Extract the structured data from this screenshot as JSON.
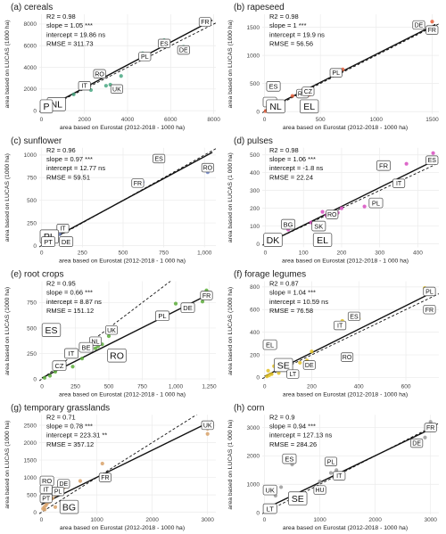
{
  "figure": {
    "colors": {
      "cereals": "#4aa882",
      "rapeseed": "#e8603c",
      "sunflower": "#6b82c8",
      "pulses": "#d74ec0",
      "root_crops": "#5aac3a",
      "forage_legumes": "#e3c225",
      "temporary_grasslands": "#d8a26a",
      "corn": "#9a9a9a"
    }
  },
  "chart_data": [
    {
      "type": "scatter",
      "key": "cereals",
      "title": "(a) cereals",
      "stats": [
        "R2 = 0.98",
        "slope = 1.05 ***",
        "intercept = 19.86 ns",
        "RMSE = 311.73"
      ],
      "xlabel": "area based on Eurostat (2012-2018 - 1000 ha)",
      "ylabel": "area based on LUCAS (1000 ha)",
      "xlim": [
        -100,
        8100
      ],
      "ylim": [
        -300,
        8900
      ],
      "xticks": [
        0,
        2000,
        4000,
        6000,
        8000
      ],
      "xtick_labels": [
        "0",
        "2000",
        "4000",
        "6000",
        "8000"
      ],
      "yticks": [
        0,
        2000,
        4000,
        6000,
        8000
      ],
      "ytick_labels": [
        "0",
        "2000",
        "4000",
        "6000",
        "8000"
      ],
      "slope": 1.05,
      "intercept": 19.86,
      "points": [
        [
          7600,
          8400
        ],
        [
          5700,
          6500
        ],
        [
          6600,
          5900
        ],
        [
          4700,
          5300
        ],
        [
          3700,
          3200
        ],
        [
          2800,
          3300
        ],
        [
          3200,
          2400
        ],
        [
          1900,
          2200
        ],
        [
          3000,
          2300
        ],
        [
          1500,
          1500
        ],
        [
          2300,
          1900
        ],
        [
          1000,
          900
        ],
        [
          600,
          600
        ],
        [
          200,
          150
        ],
        [
          80,
          100
        ],
        [
          300,
          300
        ]
      ],
      "labels": [
        {
          "t": "FR",
          "x": 7600,
          "y": 8200,
          "s": 0
        },
        {
          "t": "ES",
          "x": 5700,
          "y": 6200,
          "s": 0
        },
        {
          "t": "DE",
          "x": 6600,
          "y": 5600,
          "s": 0
        },
        {
          "t": "PL",
          "x": 4800,
          "y": 5000,
          "s": 0
        },
        {
          "t": "RO",
          "x": 2700,
          "y": 3400,
          "s": 0
        },
        {
          "t": "UK",
          "x": 3500,
          "y": 2000,
          "s": 0
        },
        {
          "t": "IT",
          "x": 2000,
          "y": 2300,
          "s": 0
        },
        {
          "t": "NL",
          "x": 700,
          "y": 600,
          "s": 2
        },
        {
          "t": "P",
          "x": 200,
          "y": 200,
          "s": 2
        }
      ]
    },
    {
      "type": "scatter",
      "key": "rapeseed",
      "title": "(b) rapeseed",
      "stats": [
        "R2 = 0.98",
        "slope = 1 ***",
        "intercept = 19.9 ns",
        "RMSE = 56.56"
      ],
      "xlabel": "area based on Eurostat (2012-2018 - 1000 ha)",
      "ylabel": "area based on LUCAS (1000 ha)",
      "xlim": [
        -20,
        1560
      ],
      "ylim": [
        -40,
        1730
      ],
      "xticks": [
        0,
        500,
        1000,
        1500
      ],
      "xtick_labels": [
        "0",
        "500",
        "1000",
        "1500"
      ],
      "yticks": [
        0,
        500,
        1000,
        1500
      ],
      "ytick_labels": [
        "0",
        "500",
        "1000",
        "1500"
      ],
      "slope": 1.0,
      "intercept": 19.9,
      "points": [
        [
          1500,
          1600
        ],
        [
          1400,
          1500
        ],
        [
          700,
          750
        ],
        [
          350,
          400
        ],
        [
          400,
          300
        ],
        [
          250,
          280
        ],
        [
          120,
          150
        ],
        [
          80,
          60
        ],
        [
          50,
          40
        ],
        [
          30,
          20
        ],
        [
          10,
          10
        ]
      ],
      "labels": [
        {
          "t": "FR",
          "x": 1500,
          "y": 1450,
          "s": 0
        },
        {
          "t": "DE",
          "x": 1380,
          "y": 1540,
          "s": 0
        },
        {
          "t": "PL",
          "x": 640,
          "y": 690,
          "s": 0
        },
        {
          "t": "RO",
          "x": 340,
          "y": 320,
          "s": 0
        },
        {
          "t": "CZ",
          "x": 390,
          "y": 360,
          "s": 0
        },
        {
          "t": "ES",
          "x": 80,
          "y": 450,
          "s": 1
        },
        {
          "t": "IT",
          "x": 20,
          "y": 170,
          "s": 1
        },
        {
          "t": "NL",
          "x": 100,
          "y": 50,
          "s": 2
        },
        {
          "t": "EL",
          "x": 400,
          "y": 30,
          "s": 2
        }
      ]
    },
    {
      "type": "scatter",
      "key": "sunflower",
      "title": "(c) sunflower",
      "stats": [
        "R2 = 0.96",
        "slope = 0.97 ***",
        "intercept = 12.77 ns",
        "RMSE = 59.51"
      ],
      "xlabel": "area based on Eurostat (2012-2018 - 1 000 ha)",
      "ylabel": "area based on LUCAS (1000 ha)",
      "xlim": [
        -15,
        1070
      ],
      "ylim": [
        -20,
        1080
      ],
      "xticks": [
        0,
        250,
        500,
        750,
        1000
      ],
      "xtick_labels": [
        "0",
        "250",
        "500",
        "750",
        "1,000"
      ],
      "yticks": [
        0,
        250,
        500,
        750,
        1000
      ],
      "ytick_labels": [
        "0",
        "250",
        "500",
        "750",
        "1000"
      ],
      "slope": 0.97,
      "intercept": 12.77,
      "points": [
        [
          1020,
          810
        ],
        [
          720,
          930
        ],
        [
          620,
          700
        ],
        [
          110,
          130
        ],
        [
          90,
          60
        ],
        [
          70,
          40
        ],
        [
          50,
          30
        ],
        [
          20,
          20
        ],
        [
          10,
          5
        ]
      ],
      "labels": [
        {
          "t": "RO",
          "x": 1020,
          "y": 860,
          "s": 0
        },
        {
          "t": "ES",
          "x": 720,
          "y": 960,
          "s": 0
        },
        {
          "t": "FR",
          "x": 590,
          "y": 690,
          "s": 0
        },
        {
          "t": "IT",
          "x": 130,
          "y": 190,
          "s": 0
        },
        {
          "t": "PL",
          "x": 40,
          "y": 100,
          "s": 2
        },
        {
          "t": "DE",
          "x": 150,
          "y": 40,
          "s": 1
        },
        {
          "t": "PT",
          "x": 40,
          "y": 0,
          "s": 1
        }
      ]
    },
    {
      "type": "scatter",
      "key": "pulses",
      "title": "(d) pulses",
      "stats": [
        "R2 = 0.98",
        "slope = 1.06 ***",
        "intercept = -1.8 ns",
        "RMSE = 22.24"
      ],
      "xlabel": "area based on Eurostat (2012-2018 - 1 000 ha)",
      "ylabel": "area based on LUCAS (1 000 ha)",
      "xlim": [
        -8,
        455
      ],
      "ylim": [
        -20,
        540
      ],
      "xticks": [
        0,
        100,
        200,
        300,
        400
      ],
      "xtick_labels": [
        "0",
        "100",
        "200",
        "300",
        "400"
      ],
      "yticks": [
        0,
        100,
        200,
        300,
        400,
        500
      ],
      "ytick_labels": [
        "0",
        "100",
        "200",
        "300",
        "400",
        "500"
      ],
      "slope": 1.06,
      "intercept": -1.8,
      "points": [
        [
          440,
          510
        ],
        [
          440,
          460
        ],
        [
          370,
          450
        ],
        [
          260,
          210
        ],
        [
          200,
          200
        ],
        [
          190,
          175
        ],
        [
          160,
          160
        ],
        [
          150,
          180
        ],
        [
          120,
          120
        ],
        [
          60,
          80
        ],
        [
          30,
          30
        ],
        [
          20,
          20
        ],
        [
          10,
          10
        ]
      ],
      "labels": [
        {
          "t": "ES",
          "x": 440,
          "y": 470,
          "s": 0
        },
        {
          "t": "FR",
          "x": 310,
          "y": 440,
          "s": 1
        },
        {
          "t": "IT",
          "x": 350,
          "y": 340,
          "s": 0
        },
        {
          "t": "PL",
          "x": 290,
          "y": 230,
          "s": 1
        },
        {
          "t": "RO",
          "x": 175,
          "y": 165,
          "s": 0
        },
        {
          "t": "BG",
          "x": 60,
          "y": 110,
          "s": 1
        },
        {
          "t": "SK",
          "x": 140,
          "y": 100,
          "s": 1
        },
        {
          "t": "DK",
          "x": 20,
          "y": 20,
          "s": 2
        },
        {
          "t": "EL",
          "x": 150,
          "y": 20,
          "s": 2
        }
      ]
    },
    {
      "type": "scatter",
      "key": "root_crops",
      "title": "(e) root crops",
      "stats": [
        "R2 = 0.95",
        "slope = 0.66 ***",
        "intercept = 8.87 ns",
        "RMSE = 151.12"
      ],
      "xlabel": "area based on Eurostat (2012-2018 - 1 000 ha)",
      "ylabel": "area based on LUCAS (1000 ha)",
      "xlim": [
        -20,
        1300
      ],
      "ylim": [
        -20,
        960
      ],
      "xticks": [
        0,
        250,
        500,
        750,
        1000,
        1250
      ],
      "xtick_labels": [
        "0",
        "250",
        "500",
        "750",
        "1,000",
        "1,250"
      ],
      "yticks": [
        0,
        250,
        500,
        750
      ],
      "ytick_labels": [
        "0",
        "250",
        "500",
        "750"
      ],
      "slope": 0.66,
      "intercept": 8.87,
      "points": [
        [
          1230,
          870
        ],
        [
          1200,
          760
        ],
        [
          1000,
          740
        ],
        [
          500,
          420
        ],
        [
          450,
          340
        ],
        [
          420,
          320
        ],
        [
          300,
          200
        ],
        [
          230,
          120
        ],
        [
          100,
          70
        ],
        [
          60,
          30
        ],
        [
          20,
          10
        ],
        [
          400,
          300
        ]
      ],
      "labels": [
        {
          "t": "FR",
          "x": 1230,
          "y": 820,
          "s": 0
        },
        {
          "t": "DE",
          "x": 1090,
          "y": 700,
          "s": 1
        },
        {
          "t": "PL",
          "x": 900,
          "y": 620,
          "s": 1
        },
        {
          "t": "UK",
          "x": 520,
          "y": 480,
          "s": 0
        },
        {
          "t": "ES",
          "x": 70,
          "y": 480,
          "s": 2
        },
        {
          "t": "NL",
          "x": 400,
          "y": 370,
          "s": 0
        },
        {
          "t": "BE",
          "x": 330,
          "y": 310,
          "s": 1
        },
        {
          "t": "IT",
          "x": 220,
          "y": 250,
          "s": 1
        },
        {
          "t": "RO",
          "x": 560,
          "y": 230,
          "s": 2
        },
        {
          "t": "CZ",
          "x": 130,
          "y": 130,
          "s": 1
        }
      ]
    },
    {
      "type": "scatter",
      "key": "forage_legumes",
      "title": "(f) forage legumes",
      "stats": [
        "R2 = 0.87",
        "slope = 1.04 ***",
        "intercept = 10.59 ns",
        "RMSE = 76.58"
      ],
      "xlabel": "area based on Eurostat (2012-2018 - 1000 ha)",
      "ylabel": "area based on LUCAS (1000 ha)",
      "xlim": [
        -10,
        740
      ],
      "ylim": [
        -30,
        850
      ],
      "xticks": [
        0,
        200,
        400,
        600
      ],
      "xtick_labels": [
        "0",
        "200",
        "400",
        "600"
      ],
      "yticks": [
        0,
        200,
        400,
        600,
        800
      ],
      "ytick_labels": [
        "0",
        "200",
        "400",
        "600",
        "800"
      ],
      "slope": 1.04,
      "intercept": 10.59,
      "points": [
        [
          680,
          790
        ],
        [
          690,
          590
        ],
        [
          400,
          520
        ],
        [
          330,
          500
        ],
        [
          310,
          460
        ],
        [
          200,
          230
        ],
        [
          180,
          150
        ],
        [
          150,
          130
        ],
        [
          100,
          100
        ],
        [
          80,
          80
        ],
        [
          60,
          40
        ],
        [
          30,
          30
        ],
        [
          20,
          20
        ],
        [
          10,
          10
        ],
        [
          15,
          60
        ],
        [
          40,
          100
        ]
      ],
      "labels": [
        {
          "t": "PL",
          "x": 700,
          "y": 760,
          "s": 0
        },
        {
          "t": "FR",
          "x": 700,
          "y": 600,
          "s": 0
        },
        {
          "t": "IT",
          "x": 320,
          "y": 460,
          "s": 0
        },
        {
          "t": "ES",
          "x": 380,
          "y": 540,
          "s": 0
        },
        {
          "t": "RO",
          "x": 350,
          "y": 180,
          "s": 0
        },
        {
          "t": "EL",
          "x": 20,
          "y": 290,
          "s": 1
        },
        {
          "t": "SE",
          "x": 80,
          "y": 110,
          "s": 2
        },
        {
          "t": "DE",
          "x": 190,
          "y": 110,
          "s": 0
        },
        {
          "t": "LT",
          "x": 120,
          "y": 30,
          "s": 0
        }
      ]
    },
    {
      "type": "scatter",
      "key": "temporary_grasslands",
      "title": "(g) temporary grasslands",
      "stats": [
        "R2 = 0.71",
        "slope = 0.78 ***",
        "intercept = 223.31 **",
        "RMSE = 357.12"
      ],
      "xlabel": "area based on Eurostat (2012-2018 - 1000 ha)",
      "ylabel": "area based on LUCAS (1000 ha)",
      "xlim": [
        -40,
        3150
      ],
      "ylim": [
        -60,
        2800
      ],
      "xticks": [
        0,
        1000,
        2000,
        3000
      ],
      "xtick_labels": [
        "0",
        "1000",
        "2000",
        "3000"
      ],
      "yticks": [
        0,
        500,
        1000,
        1500,
        2000,
        2500
      ],
      "ytick_labels": [
        "0",
        "500",
        "1000",
        "1500",
        "2000",
        "2500"
      ],
      "slope": 0.78,
      "intercept": 223.31,
      "points": [
        [
          3000,
          2400
        ],
        [
          3000,
          2250
        ],
        [
          1100,
          1400
        ],
        [
          1150,
          1050
        ],
        [
          700,
          900
        ],
        [
          400,
          700
        ],
        [
          300,
          650
        ],
        [
          250,
          500
        ],
        [
          200,
          400
        ],
        [
          150,
          300
        ],
        [
          100,
          250
        ],
        [
          80,
          200
        ],
        [
          50,
          150
        ],
        [
          30,
          100
        ],
        [
          60,
          80
        ],
        [
          500,
          300
        ],
        [
          250,
          150
        ]
      ],
      "labels": [
        {
          "t": "UK",
          "x": 3000,
          "y": 2500,
          "s": 0
        },
        {
          "t": "FR",
          "x": 1150,
          "y": 1000,
          "s": 0
        },
        {
          "t": "DE",
          "x": 400,
          "y": 820,
          "s": 0
        },
        {
          "t": "RO",
          "x": 20,
          "y": 900,
          "s": 1
        },
        {
          "t": "PL",
          "x": 300,
          "y": 600,
          "s": 0
        },
        {
          "t": "IT",
          "x": 20,
          "y": 660,
          "s": 0
        },
        {
          "t": "PT",
          "x": 10,
          "y": 400,
          "s": 0
        },
        {
          "t": "BG",
          "x": 500,
          "y": 100,
          "s": 2
        }
      ]
    },
    {
      "type": "scatter",
      "key": "corn",
      "title": "(h) corn",
      "stats": [
        "R2 = 0.9",
        "slope = 0.94 ***",
        "intercept = 127.13 ns",
        "RMSE = 284.26"
      ],
      "xlabel": "area based on Eurostat (2012-2018 - 1000 ha)",
      "ylabel": "area based on LUCAS (1 000 ha)",
      "xlim": [
        -40,
        3150
      ],
      "ylim": [
        -60,
        3450
      ],
      "xticks": [
        0,
        1000,
        2000,
        3000
      ],
      "xtick_labels": [
        "0",
        "1000",
        "2000",
        "3000"
      ],
      "yticks": [
        0,
        1000,
        2000,
        3000
      ],
      "ytick_labels": [
        "0",
        "1000",
        "2000",
        "3000"
      ],
      "slope": 0.94,
      "intercept": 127.13,
      "points": [
        [
          3000,
          3200
        ],
        [
          2900,
          2650
        ],
        [
          1300,
          1500
        ],
        [
          1200,
          1400
        ],
        [
          1000,
          1100
        ],
        [
          500,
          1700
        ],
        [
          300,
          900
        ],
        [
          200,
          600
        ],
        [
          150,
          200
        ],
        [
          50,
          100
        ],
        [
          30,
          50
        ]
      ],
      "labels": [
        {
          "t": "FR",
          "x": 3000,
          "y": 3000,
          "s": 0
        },
        {
          "t": "DE",
          "x": 2750,
          "y": 2450,
          "s": 0
        },
        {
          "t": "PL",
          "x": 1200,
          "y": 1800,
          "s": 0
        },
        {
          "t": "IT",
          "x": 1350,
          "y": 1300,
          "s": 0
        },
        {
          "t": "ES",
          "x": 450,
          "y": 1900,
          "s": 1
        },
        {
          "t": "HU",
          "x": 1000,
          "y": 800,
          "s": 0
        },
        {
          "t": "UK",
          "x": 100,
          "y": 800,
          "s": 1
        },
        {
          "t": "SE",
          "x": 600,
          "y": 500,
          "s": 2
        },
        {
          "t": "LT",
          "x": 100,
          "y": 100,
          "s": 1
        }
      ]
    }
  ]
}
